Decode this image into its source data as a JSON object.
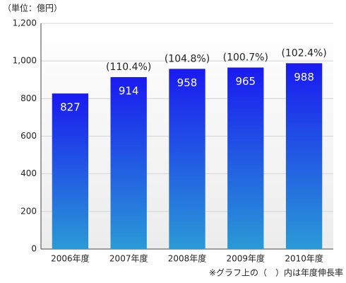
{
  "chart_data": {
    "type": "bar",
    "unit_label": "（単位：億円）",
    "footnote": "※グラフ上の（　）内は年度伸長率",
    "categories": [
      "2006年度",
      "2007年度",
      "2008年度",
      "2009年度",
      "2010年度"
    ],
    "values": [
      827,
      914,
      958,
      965,
      988
    ],
    "annotations": [
      null,
      "(110.4%)",
      "(104.8%)",
      "(100.7%)",
      "(102.4%)"
    ],
    "gradient": [
      "#1a1af0",
      "#2a9ad6"
    ],
    "ylim": [
      0,
      1200
    ],
    "yticks": [
      0,
      200,
      400,
      600,
      800,
      {
        "value": 1000,
        "label": "1,000"
      },
      {
        "value": 1200,
        "label": "1,200"
      }
    ],
    "grid": true
  }
}
